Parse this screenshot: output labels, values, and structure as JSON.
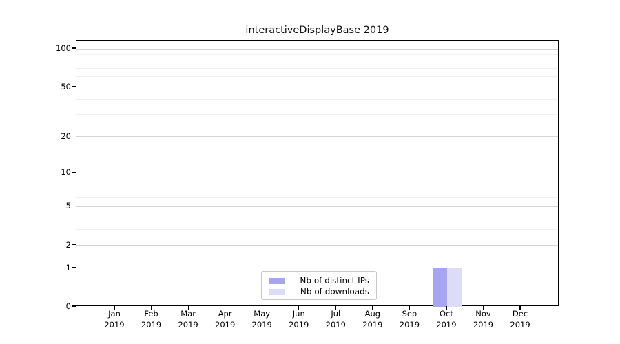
{
  "figure": {
    "background": "#ffffff"
  },
  "chart_data": {
    "type": "bar",
    "title": "interactiveDisplayBase 2019",
    "xlabel": "",
    "ylabel": "",
    "year_label": "2019",
    "categories": [
      "Jan 2019",
      "Feb 2019",
      "Mar 2019",
      "Apr 2019",
      "May 2019",
      "Jun 2019",
      "Jul 2019",
      "Aug 2019",
      "Sep 2019",
      "Oct 2019",
      "Nov 2019",
      "Dec 2019"
    ],
    "months": [
      "Jan",
      "Feb",
      "Mar",
      "Apr",
      "May",
      "Jun",
      "Jul",
      "Aug",
      "Sep",
      "Oct",
      "Nov",
      "Dec"
    ],
    "series": [
      {
        "name": "Nb of distinct IPs",
        "color": "#a5a5f0",
        "values": [
          0,
          0,
          0,
          0,
          0,
          0,
          0,
          0,
          0,
          1,
          0,
          0
        ]
      },
      {
        "name": "Nb of downloads",
        "color": "#dcdcf8",
        "values": [
          0,
          0,
          0,
          0,
          0,
          0,
          0,
          0,
          0,
          1,
          0,
          0
        ]
      }
    ],
    "yscale": "log1p",
    "ylim": [
      0,
      117
    ],
    "yticks_major": [
      0,
      1,
      2,
      5,
      10,
      20,
      50,
      100
    ],
    "yticks_minor": [
      3,
      4,
      6,
      7,
      8,
      9,
      30,
      40,
      60,
      70,
      80,
      90
    ],
    "grid": "horizontal-only",
    "legend_position": "bottom-center",
    "colors": {
      "grid_major": "#d4d4d4",
      "grid_minor": "#f0f0f0",
      "spine": "#000000",
      "tick_label": "#000000"
    }
  }
}
